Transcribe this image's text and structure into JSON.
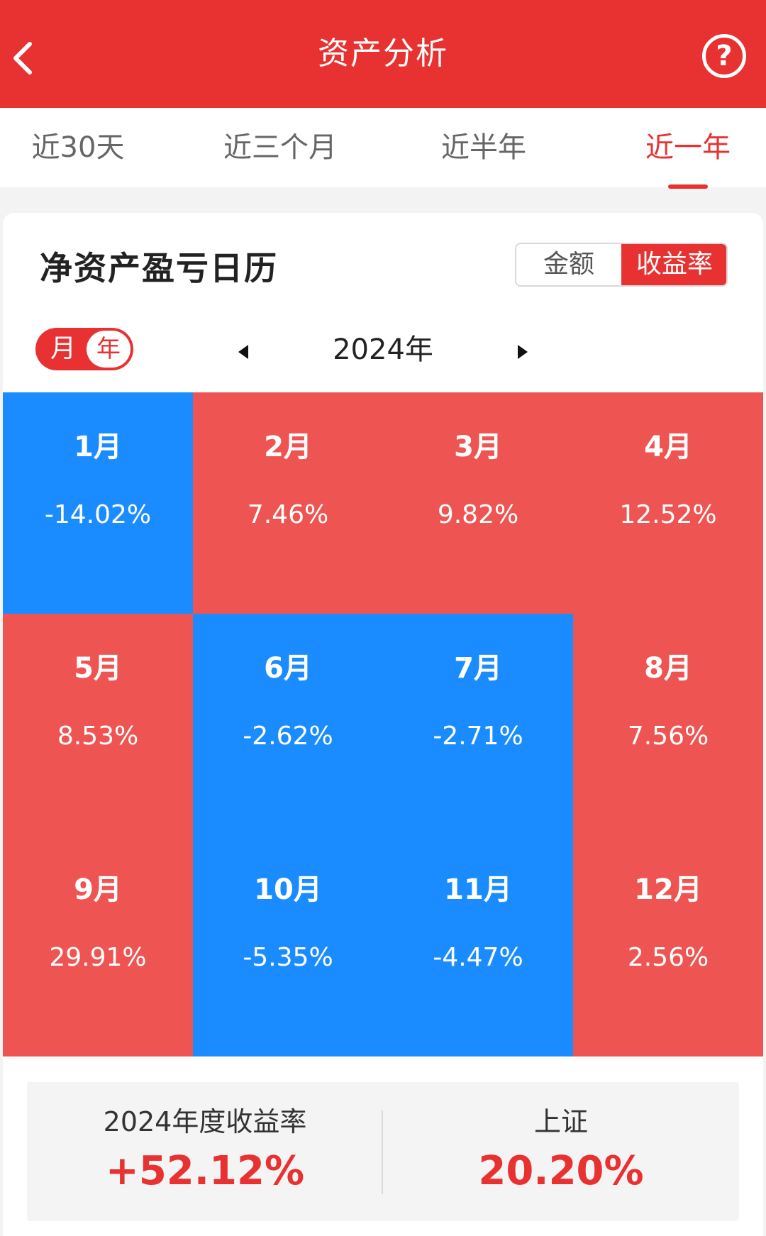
{
  "header": {
    "title": "资产分析",
    "help_symbol": "?"
  },
  "tabs": [
    {
      "label": "近30天",
      "active": false
    },
    {
      "label": "近三个月",
      "active": false
    },
    {
      "label": "近半年",
      "active": false
    },
    {
      "label": "近一年",
      "active": true
    }
  ],
  "card": {
    "title": "净资产盈亏日历",
    "segment": {
      "amount_label": "金额",
      "rate_label": "收益率",
      "selected": "收益率"
    },
    "period_toggle": {
      "month_label": "月",
      "year_label": "年",
      "selected": "年"
    },
    "year": "2024年"
  },
  "months": [
    {
      "label": "1月",
      "value": "-14.02%",
      "sign": "negative"
    },
    {
      "label": "2月",
      "value": "7.46%",
      "sign": "positive"
    },
    {
      "label": "3月",
      "value": "9.82%",
      "sign": "positive"
    },
    {
      "label": "4月",
      "value": "12.52%",
      "sign": "positive"
    },
    {
      "label": "5月",
      "value": "8.53%",
      "sign": "positive"
    },
    {
      "label": "6月",
      "value": "-2.62%",
      "sign": "negative"
    },
    {
      "label": "7月",
      "value": "-2.71%",
      "sign": "negative"
    },
    {
      "label": "8月",
      "value": "7.56%",
      "sign": "positive"
    },
    {
      "label": "9月",
      "value": "29.91%",
      "sign": "positive"
    },
    {
      "label": "10月",
      "value": "-5.35%",
      "sign": "negative"
    },
    {
      "label": "11月",
      "value": "-4.47%",
      "sign": "negative"
    },
    {
      "label": "12月",
      "value": "2.56%",
      "sign": "positive"
    }
  ],
  "summary": {
    "annual_label": "2024年度收益率",
    "annual_value": "+52.12%",
    "index_label": "上证",
    "index_value": "20.20%"
  },
  "colors": {
    "accent": "#e83232",
    "positive": "#ee5552",
    "negative": "#1a8cff"
  }
}
